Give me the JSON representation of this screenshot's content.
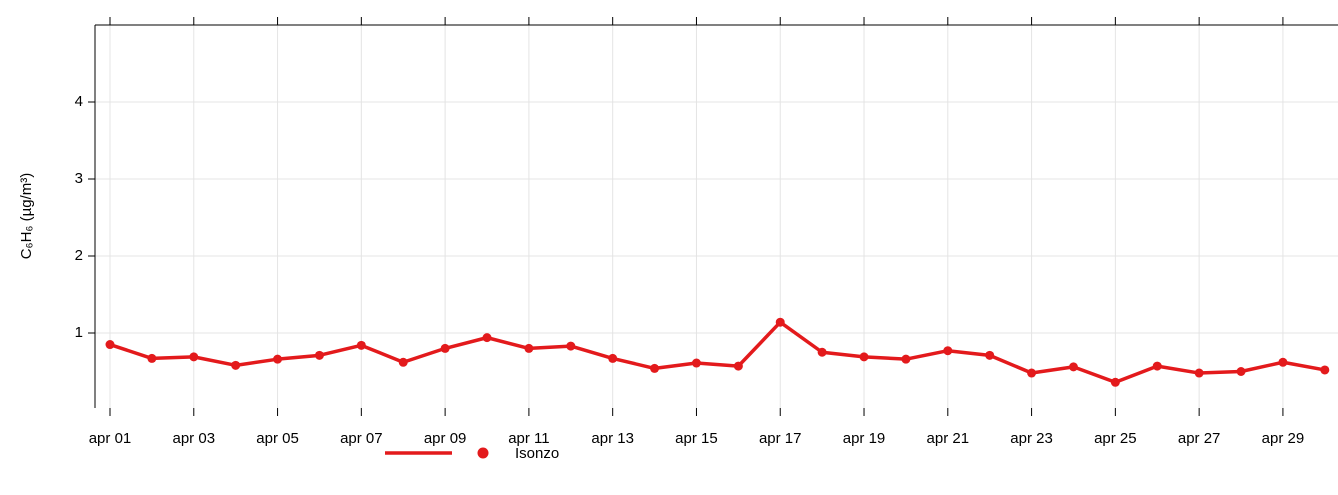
{
  "chart_data": {
    "type": "line",
    "y_label": "C₆H₆ (µg/m³)",
    "categories": [
      "apr 01",
      null,
      "apr 03",
      null,
      "apr 05",
      null,
      "apr 07",
      null,
      "apr 09",
      null,
      "apr 11",
      null,
      "apr 13",
      null,
      "apr 15",
      null,
      "apr 17",
      null,
      "apr 19",
      null,
      "apr 21",
      null,
      "apr 23",
      null,
      "apr 25",
      null,
      "apr 27",
      null,
      "apr 29",
      null
    ],
    "series": [
      {
        "name": "Isonzo",
        "color": "#e31a1c",
        "values": [
          0.85,
          0.67,
          0.69,
          0.58,
          0.66,
          0.71,
          0.84,
          0.62,
          0.8,
          0.94,
          0.8,
          0.83,
          0.67,
          0.54,
          0.61,
          0.57,
          1.14,
          0.75,
          0.69,
          0.66,
          0.77,
          0.71,
          0.48,
          0.56,
          0.36,
          0.57,
          0.48,
          0.5,
          0.62,
          0.52
        ]
      }
    ],
    "ylim": [
      0,
      5
    ],
    "yticks": [
      1,
      2,
      3,
      4
    ],
    "grid": true,
    "legend": "bottom"
  }
}
